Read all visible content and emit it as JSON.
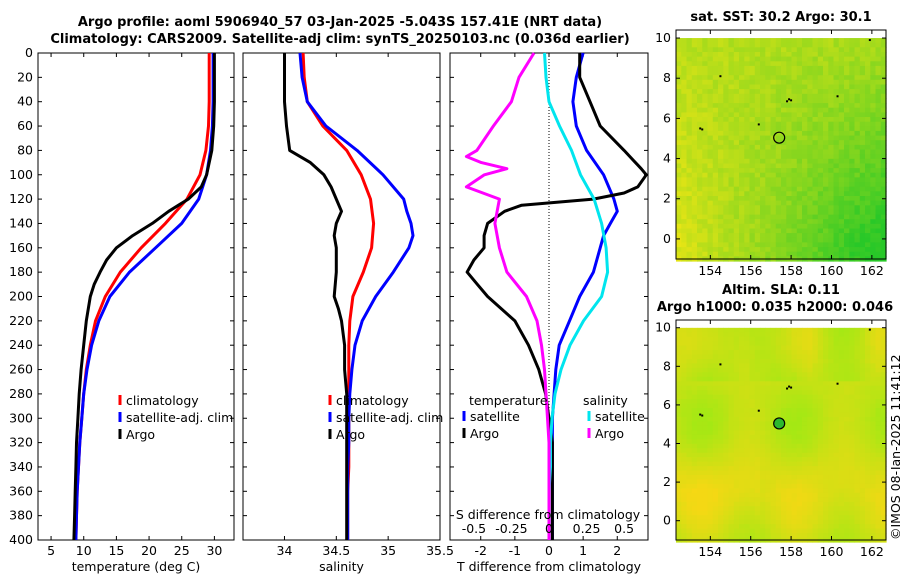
{
  "header": {
    "line1": "Argo profile: aoml 5906940_57 03-Jan-2025 -5.043S 157.41E (NRT data)",
    "line2": "Climatology: CARS2009. Satellite-adj clim: synTS_20250103.nc (0.036d earlier)"
  },
  "watermark": "©IMOS 08-Jan-2025 11:41:12",
  "colors": {
    "red": "#ff0000",
    "blue": "#0000ff",
    "black": "#000000",
    "magenta": "#ff00ff",
    "cyan": "#00e5ee"
  },
  "chart_data": [
    {
      "id": "temperature",
      "type": "line",
      "xlabel": "temperature (deg C)",
      "ylim": [
        400,
        0
      ],
      "xlim": [
        3,
        33
      ],
      "xticks": [
        5,
        10,
        15,
        20,
        25,
        30
      ],
      "xtick_labels": [
        "5",
        "10",
        "15",
        "20",
        "25",
        "30"
      ],
      "yticks": [
        0,
        20,
        40,
        60,
        80,
        100,
        120,
        140,
        160,
        180,
        200,
        220,
        240,
        260,
        280,
        300,
        320,
        340,
        360,
        380,
        400
      ],
      "ytick_labels": [
        "0",
        "20",
        "40",
        "60",
        "80",
        "100",
        "120",
        "140",
        "160",
        "180",
        "200",
        "220",
        "240",
        "260",
        "280",
        "300",
        "320",
        "340",
        "360",
        "380",
        "400"
      ],
      "legend": [
        "climatology",
        "satellite-adj. clim",
        "Argo"
      ],
      "series": [
        {
          "name": "climatology",
          "color": "#ff0000",
          "depth": [
            0,
            20,
            40,
            60,
            80,
            100,
            120,
            140,
            160,
            180,
            200,
            220,
            240,
            260,
            280,
            300,
            320,
            340,
            360,
            380,
            400
          ],
          "values": [
            29.2,
            29.2,
            29.2,
            29.1,
            28.7,
            27.8,
            25.8,
            22.5,
            18.8,
            15.6,
            13.3,
            11.8,
            11.0,
            10.4,
            10.0,
            9.7,
            9.4,
            9.2,
            9.0,
            8.9,
            8.8
          ]
        },
        {
          "name": "satellite-adj. clim",
          "color": "#0000ff",
          "depth": [
            0,
            20,
            40,
            60,
            80,
            100,
            120,
            140,
            160,
            180,
            200,
            220,
            240,
            260,
            280,
            300,
            320,
            340,
            360,
            380,
            400
          ],
          "values": [
            29.8,
            29.8,
            29.8,
            29.7,
            29.4,
            28.8,
            27.6,
            25.0,
            21.0,
            17.0,
            14.0,
            12.3,
            11.2,
            10.5,
            10.0,
            9.7,
            9.4,
            9.2,
            9.0,
            8.9,
            8.8
          ]
        },
        {
          "name": "Argo",
          "color": "#000000",
          "depth": [
            0,
            20,
            40,
            60,
            80,
            100,
            110,
            120,
            125,
            130,
            140,
            150,
            160,
            170,
            180,
            190,
            200,
            220,
            240,
            260,
            280,
            300,
            320,
            340,
            360,
            380,
            400
          ],
          "values": [
            30.0,
            30.0,
            30.0,
            29.9,
            29.6,
            28.8,
            28.0,
            26.0,
            24.5,
            23.0,
            20.5,
            17.5,
            15.0,
            13.5,
            12.5,
            11.6,
            11.0,
            10.4,
            10.0,
            9.6,
            9.3,
            9.1,
            8.9,
            8.8,
            8.7,
            8.6,
            8.5
          ]
        }
      ]
    },
    {
      "id": "salinity",
      "type": "line",
      "xlabel": "salinity",
      "ylim": [
        400,
        0
      ],
      "xlim": [
        33.6,
        35.5
      ],
      "xticks": [
        34,
        34.5,
        35,
        35.5
      ],
      "xtick_labels": [
        "34",
        "34.5",
        "35",
        "35.5"
      ],
      "legend": [
        "climatology",
        "satellite-adj. clim",
        "Argo"
      ],
      "series": [
        {
          "name": "climatology",
          "color": "#ff0000",
          "depth": [
            0,
            20,
            40,
            60,
            80,
            100,
            120,
            140,
            160,
            180,
            200,
            220,
            240,
            260,
            280,
            300,
            320,
            340,
            360,
            380,
            400
          ],
          "values": [
            34.18,
            34.19,
            34.22,
            34.37,
            34.6,
            34.74,
            34.83,
            34.86,
            34.84,
            34.76,
            34.66,
            34.63,
            34.62,
            34.62,
            34.62,
            34.62,
            34.62,
            34.62,
            34.61,
            34.61,
            34.61
          ]
        },
        {
          "name": "satellite-adj. clim",
          "color": "#0000ff",
          "depth": [
            0,
            20,
            40,
            60,
            80,
            100,
            120,
            130,
            140,
            150,
            160,
            180,
            200,
            220,
            240,
            260,
            280,
            300,
            320,
            340,
            360,
            380,
            400
          ],
          "values": [
            34.15,
            34.17,
            34.22,
            34.4,
            34.7,
            34.95,
            35.15,
            35.18,
            35.22,
            35.24,
            35.2,
            35.05,
            34.88,
            34.75,
            34.68,
            34.65,
            34.63,
            34.62,
            34.62,
            34.61,
            34.61,
            34.61,
            34.61
          ]
        },
        {
          "name": "Argo",
          "color": "#000000",
          "depth": [
            0,
            20,
            40,
            60,
            80,
            90,
            100,
            110,
            120,
            130,
            140,
            150,
            160,
            180,
            200,
            210,
            220,
            240,
            260,
            280,
            300,
            320,
            340,
            360,
            380,
            400
          ],
          "values": [
            34.0,
            34.0,
            34.0,
            34.02,
            34.05,
            34.25,
            34.38,
            34.45,
            34.5,
            34.55,
            34.5,
            34.48,
            34.5,
            34.5,
            34.48,
            34.52,
            34.55,
            34.58,
            34.58,
            34.6,
            34.6,
            34.6,
            34.6,
            34.6,
            34.6,
            34.6
          ]
        }
      ]
    },
    {
      "id": "differences",
      "type": "line",
      "xlabel": "T difference from climatology",
      "xlabel_top": "S difference from climatology",
      "ylim": [
        400,
        0
      ],
      "xlim": [
        -2.9,
        2.9
      ],
      "xticks": [
        -2,
        -1,
        0,
        1,
        2
      ],
      "xtick_labels": [
        "-2",
        "-1",
        "0",
        "1",
        "2"
      ],
      "s_ticks": [
        -0.5,
        -0.25,
        0,
        0.25,
        0.5
      ],
      "s_tick_labels": [
        "-0.5",
        "-0.25",
        "0",
        "0.25",
        "0.5"
      ],
      "legend_left_title": "temperature",
      "legend_right_title": "salinity",
      "legend": [
        "satellite",
        "Argo",
        "satellite",
        "Argo"
      ],
      "series": [
        {
          "name": "temperature satellite",
          "color": "#0000ff",
          "depth": [
            0,
            20,
            40,
            60,
            80,
            100,
            120,
            130,
            140,
            150,
            160,
            180,
            200,
            220,
            240,
            260,
            280,
            300,
            320,
            340,
            360,
            380,
            400
          ],
          "values": [
            1.0,
            0.8,
            0.7,
            0.8,
            1.1,
            1.6,
            1.9,
            2.0,
            1.8,
            1.6,
            1.5,
            1.3,
            0.9,
            0.6,
            0.3,
            0.2,
            0.15,
            0.1,
            0.1,
            0.1,
            0.1,
            0.1,
            0.1
          ]
        },
        {
          "name": "temperature Argo",
          "color": "#000000",
          "depth": [
            0,
            20,
            40,
            60,
            80,
            95,
            100,
            110,
            115,
            120,
            125,
            130,
            140,
            150,
            160,
            170,
            180,
            190,
            200,
            220,
            240,
            260,
            280,
            300,
            320,
            340,
            360,
            380,
            400
          ],
          "values": [
            0.9,
            0.9,
            1.2,
            1.5,
            2.2,
            2.7,
            2.85,
            2.6,
            2.2,
            1.3,
            -0.8,
            -1.3,
            -1.8,
            -1.9,
            -1.9,
            -2.2,
            -2.4,
            -2.1,
            -1.8,
            -1.0,
            -0.6,
            -0.3,
            -0.1,
            0.0,
            0.1,
            0.1,
            0.1,
            0.1,
            0.1
          ]
        },
        {
          "name": "salinity satellite",
          "color": "#00e5ee",
          "depth": [
            0,
            20,
            40,
            60,
            80,
            100,
            120,
            140,
            160,
            180,
            200,
            220,
            240,
            260,
            280,
            300,
            320,
            340,
            360,
            380,
            400
          ],
          "values": [
            -0.03,
            -0.02,
            0.0,
            0.07,
            0.15,
            0.21,
            0.3,
            0.35,
            0.38,
            0.39,
            0.35,
            0.23,
            0.14,
            0.08,
            0.04,
            0.02,
            0.01,
            0.01,
            0.0,
            0.0,
            0.0
          ]
        },
        {
          "name": "salinity Argo",
          "color": "#ff00ff",
          "depth": [
            0,
            20,
            40,
            60,
            80,
            85,
            90,
            95,
            100,
            110,
            120,
            140,
            160,
            180,
            200,
            220,
            240,
            260,
            280,
            300,
            320,
            340,
            360,
            380,
            400
          ],
          "values": [
            -0.1,
            -0.2,
            -0.25,
            -0.37,
            -0.48,
            -0.55,
            -0.45,
            -0.28,
            -0.43,
            -0.55,
            -0.33,
            -0.36,
            -0.33,
            -0.28,
            -0.15,
            -0.08,
            -0.05,
            -0.03,
            -0.02,
            -0.01,
            0.0,
            0.0,
            0.0,
            0.0,
            0.0
          ]
        }
      ]
    },
    {
      "id": "sst-map",
      "type": "heatmap",
      "title": "sat. SST: 30.2 Argo: 30.1",
      "xticks": [
        154,
        156,
        158,
        160,
        162
      ],
      "xtick_labels": [
        "154",
        "156",
        "158",
        "160",
        "162"
      ],
      "yticks": [
        0,
        2,
        4,
        6,
        8,
        10
      ],
      "ytick_labels": [
        "0",
        "2",
        "4",
        "6",
        "8",
        "10"
      ],
      "xlim": [
        152.3,
        162.7
      ],
      "ylim": [
        -1,
        10.4
      ],
      "marker": {
        "lon": 157.41,
        "lat": 5.04
      }
    },
    {
      "id": "sla-map",
      "type": "heatmap",
      "title": "Altim. SLA: 0.11",
      "subtitle": "Argo h1000: 0.035 h2000: 0.046",
      "xticks": [
        154,
        156,
        158,
        160,
        162
      ],
      "xtick_labels": [
        "154",
        "156",
        "158",
        "160",
        "162"
      ],
      "yticks": [
        0,
        2,
        4,
        6,
        8,
        10
      ],
      "ytick_labels": [
        "0",
        "2",
        "4",
        "6",
        "8",
        "10"
      ],
      "xlim": [
        152.3,
        162.7
      ],
      "ylim": [
        -1,
        10.4
      ],
      "marker": {
        "lon": 157.41,
        "lat": 5.04
      }
    }
  ]
}
